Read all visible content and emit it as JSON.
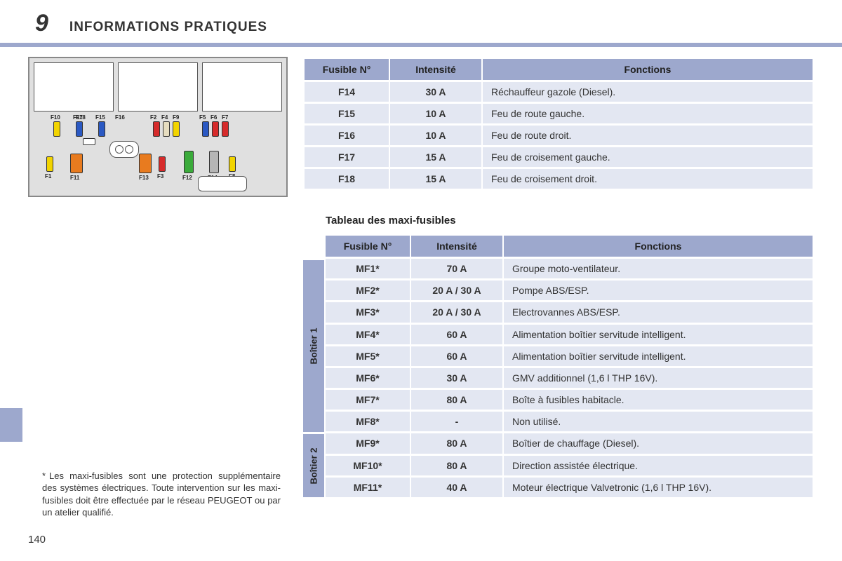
{
  "page": {
    "chapter_number": "9",
    "title": "INFORMATIONS PRATIQUES",
    "page_number": "140"
  },
  "colors": {
    "band": "#9da8cd",
    "row_bg": "#e3e7f2",
    "text": "#333333"
  },
  "fuse_diagram": {
    "labels": [
      "F10",
      "F17",
      "F15",
      "F18",
      "F16",
      "F2",
      "F4",
      "F9",
      "F5",
      "F6",
      "F7",
      "F1",
      "F11",
      "F13",
      "F3",
      "F12",
      "F14",
      "F8"
    ],
    "fuse_colors": {
      "yellow": "#f2d400",
      "blue": "#2b59c3",
      "red": "#d62b2b",
      "beige": "#e6ddc0",
      "orange": "#e87b1f",
      "green": "#3aab3a",
      "grey": "#b5b5b5"
    }
  },
  "table1": {
    "headers": {
      "c1": "Fusible N°",
      "c2": "Intensité",
      "c3": "Fonctions"
    },
    "rows": [
      {
        "n": "F14",
        "a": "30 A",
        "f": "Réchauffeur gazole (Diesel)."
      },
      {
        "n": "F15",
        "a": "10 A",
        "f": "Feu de route gauche."
      },
      {
        "n": "F16",
        "a": "10 A",
        "f": "Feu de route droit."
      },
      {
        "n": "F17",
        "a": "15 A",
        "f": "Feu de croisement gauche."
      },
      {
        "n": "F18",
        "a": "15 A",
        "f": "Feu de croisement droit."
      }
    ]
  },
  "table2": {
    "title": "Tableau des maxi-fusibles",
    "headers": {
      "c1": "Fusible N°",
      "c2": "Intensité",
      "c3": "Fonctions"
    },
    "side": {
      "b1": "Boîtier 1",
      "b2": "Boîtier 2"
    },
    "rows_b1": [
      {
        "n": "MF1*",
        "a": "70 A",
        "f": "Groupe moto-ventilateur."
      },
      {
        "n": "MF2*",
        "a": "20 A / 30 A",
        "f": "Pompe ABS/ESP."
      },
      {
        "n": "MF3*",
        "a": "20 A / 30 A",
        "f": "Electrovannes ABS/ESP."
      },
      {
        "n": "MF4*",
        "a": "60 A",
        "f": "Alimentation boîtier servitude intelligent."
      },
      {
        "n": "MF5*",
        "a": "60 A",
        "f": "Alimentation boîtier servitude intelligent."
      },
      {
        "n": "MF6*",
        "a": "30 A",
        "f": "GMV additionnel (1,6 l THP 16V)."
      },
      {
        "n": "MF7*",
        "a": "80 A",
        "f": "Boîte à fusibles habitacle."
      },
      {
        "n": "MF8*",
        "a": "-",
        "f": "Non utilisé."
      }
    ],
    "rows_b2": [
      {
        "n": "MF9*",
        "a": "80 A",
        "f": "Boîtier de chauffage (Diesel)."
      },
      {
        "n": "MF10*",
        "a": "80 A",
        "f": "Direction assistée électrique."
      },
      {
        "n": "MF11*",
        "a": "40 A",
        "f": "Moteur électrique Valvetronic (1,6 l THP 16V)."
      }
    ]
  },
  "footnote": {
    "marker": "*",
    "text": "Les maxi-fusibles sont une protection supplémentaire des systèmes électriques. Toute intervention sur les maxi-fusibles doit être effectuée par le réseau PEUGEOT ou par un atelier qualifié."
  }
}
